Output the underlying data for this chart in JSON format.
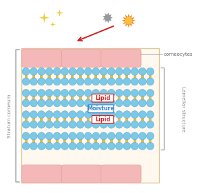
{
  "bg_color": "#ffffff",
  "skin_bg": "#fff8ee",
  "skin_border": "#ddc898",
  "corneocyte_color": "#f5b8b8",
  "corneocyte_edge": "#e8a0a0",
  "lipid_ball_color": "#7cc8e8",
  "lipid_ball_edge": "#5aaccc",
  "lipid_tail_color": "#f0b840",
  "label_lipid_bg": "#ffffff",
  "label_lipid_border": "#cc2222",
  "label_lipid_text": "#cc2222",
  "label_moisture_bg": "#ffffff",
  "label_moisture_border": "#3388cc",
  "label_moisture_text": "#3388cc",
  "text_stratum": "Stratum corneum",
  "text_lamellar": "Lamellar structure",
  "text_corneocytes": "corneocytes",
  "text_lipid": "Lipid",
  "text_moisture": "Moisture",
  "star_color": "#f0c830",
  "germ_color": "#999999",
  "sun_color": "#f08820",
  "sun_inner": "#f8c040",
  "arrow_color": "#cc2222",
  "bracket_color": "#aaaaaa",
  "line_color": "#aaaaaa"
}
